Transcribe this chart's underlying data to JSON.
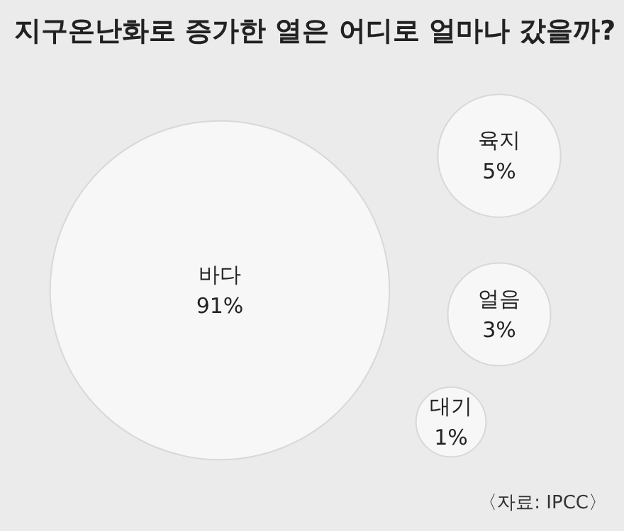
{
  "chart_data": {
    "type": "other",
    "title": "지구온난화로 증가한 열은 어디로 얼마나 갔을까?",
    "categories": [
      "바다",
      "육지",
      "얼음",
      "대기"
    ],
    "values": [
      91,
      5,
      3,
      1
    ],
    "value_labels": [
      "91%",
      "5%",
      "3%",
      "1%"
    ],
    "color": "#f7f7f7",
    "annotations": [
      "〈자료: IPCC〉"
    ]
  }
}
